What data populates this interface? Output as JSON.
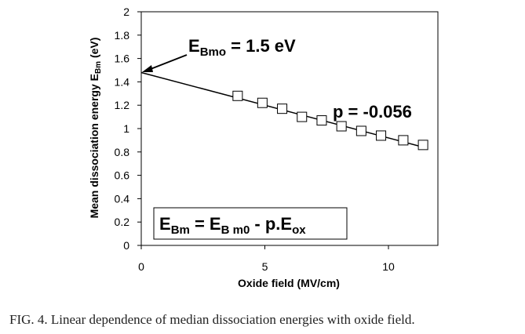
{
  "chart_data": {
    "type": "scatter",
    "xlabel": "Oxide field (MV/cm)",
    "ylabel_prefix": "Mean dissociation energy E",
    "ylabel_sub": "Bm",
    "ylabel_suffix": " (eV)",
    "xlim": [
      0,
      12
    ],
    "ylim": [
      0,
      2
    ],
    "x_ticks": [
      0,
      5,
      10
    ],
    "y_ticks": [
      "0",
      "0.2",
      "0.4",
      "0.6",
      "0.8",
      "1",
      "1.2",
      "1.4",
      "1.6",
      "1.8",
      "2"
    ],
    "points": [
      {
        "x": 3.9,
        "y": 1.28
      },
      {
        "x": 4.9,
        "y": 1.22
      },
      {
        "x": 5.7,
        "y": 1.17
      },
      {
        "x": 6.5,
        "y": 1.1
      },
      {
        "x": 7.3,
        "y": 1.07
      },
      {
        "x": 8.1,
        "y": 1.02
      },
      {
        "x": 8.9,
        "y": 0.98
      },
      {
        "x": 9.7,
        "y": 0.94
      },
      {
        "x": 10.6,
        "y": 0.9
      },
      {
        "x": 11.4,
        "y": 0.86
      }
    ],
    "fit_line": {
      "intercept": 1.48,
      "slope": -0.056,
      "x_range": [
        0,
        11.4
      ]
    },
    "annotations": {
      "intercept": {
        "base": "E",
        "sub": "Bmo",
        "rest": " = 1.5 eV"
      },
      "slope": "p = -0.056",
      "equation": {
        "a": "E",
        "a_sub": "Bm",
        "b": " = E",
        "b_sub": "B m0",
        "c": " - p.E",
        "c_sub": "ox"
      }
    }
  },
  "caption": "FIG. 4.  Linear dependence of median dissociation energies with oxide field."
}
